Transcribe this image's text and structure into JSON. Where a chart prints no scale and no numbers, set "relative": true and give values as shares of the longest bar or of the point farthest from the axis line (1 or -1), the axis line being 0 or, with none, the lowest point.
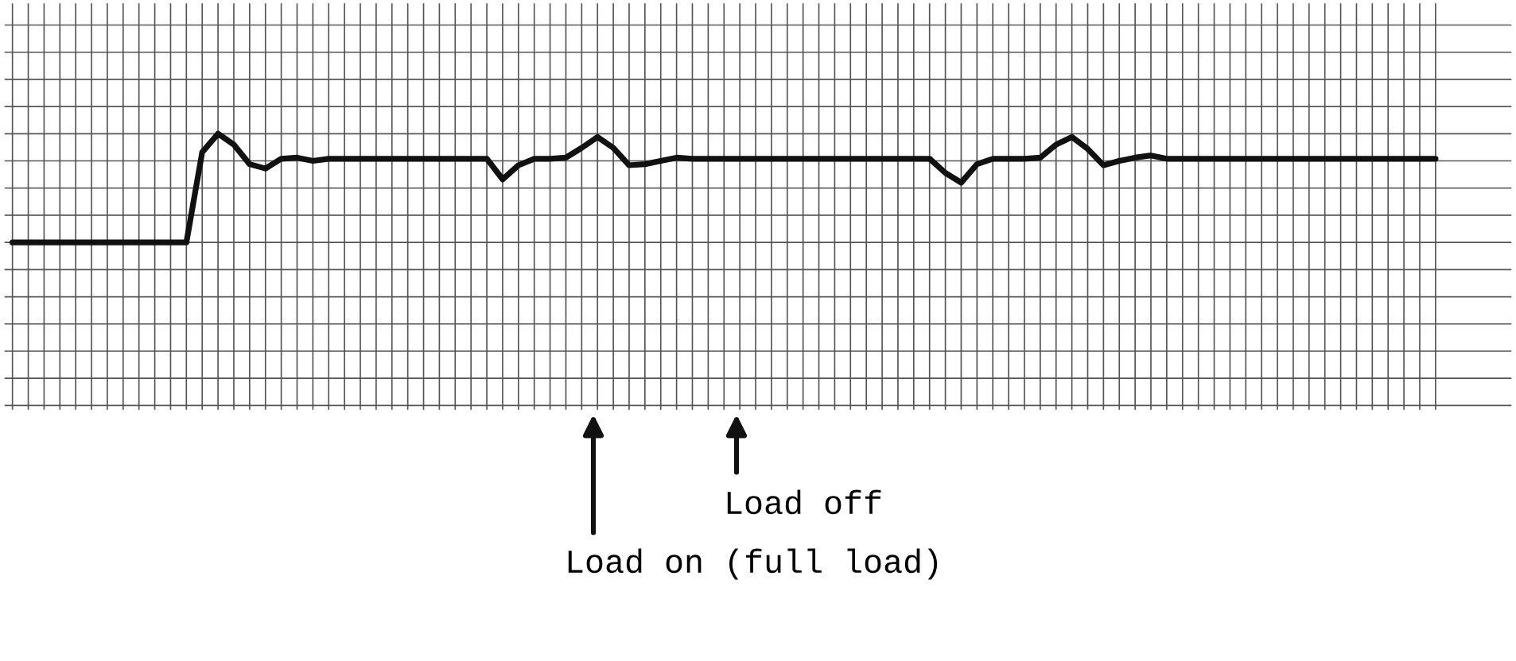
{
  "chart_data": {
    "type": "line",
    "relative": true,
    "grid": true,
    "color": "#111111",
    "categories": [
      null,
      null,
      null,
      null,
      null,
      null,
      null,
      null,
      null,
      null,
      null,
      null,
      null,
      null,
      null,
      null,
      null,
      null,
      null,
      null,
      null,
      null,
      null,
      null,
      null,
      null,
      null,
      null,
      null,
      null,
      null,
      null,
      null,
      null,
      null,
      null,
      null,
      null,
      null,
      null,
      null,
      null,
      null,
      null,
      null,
      null,
      null,
      null,
      null,
      null,
      null,
      null,
      null,
      null,
      null,
      null,
      null,
      null,
      null,
      null,
      null,
      null,
      null,
      null,
      null,
      null,
      null,
      null,
      null,
      null,
      null,
      null,
      null,
      null,
      null,
      null,
      null,
      null,
      null,
      null,
      null,
      null,
      null,
      null,
      null,
      null,
      null,
      null,
      null,
      null,
      null
    ],
    "values": [
      0,
      0,
      0,
      0,
      0,
      0,
      0,
      0,
      0,
      0,
      0,
      0,
      0.83,
      1,
      0.9,
      0.72,
      0.68,
      0.77,
      0.78,
      0.75,
      0.77,
      0.77,
      0.77,
      0.77,
      0.77,
      0.77,
      0.77,
      0.77,
      0.77,
      0.77,
      0.77,
      0.58,
      0.71,
      0.77,
      0.77,
      0.78,
      0.87,
      0.97,
      0.87,
      0.71,
      0.72,
      0.75,
      0.78,
      0.77,
      0.77,
      0.77,
      0.77,
      0.77,
      0.77,
      0.77,
      0.77,
      0.77,
      0.77,
      0.77,
      0.77,
      0.77,
      0.77,
      0.77,
      0.77,
      0.64,
      0.55,
      0.72,
      0.77,
      0.77,
      0.77,
      0.78,
      0.9,
      0.97,
      0.86,
      0.71,
      0.75,
      0.78,
      0.8,
      0.77,
      0.77,
      0.77,
      0.77,
      0.77,
      0.77,
      0.77,
      0.77,
      0.77,
      0.77,
      0.77,
      0.77,
      0.77,
      0.77,
      0.77,
      0.77,
      0.77,
      0.77
    ],
    "annotations": [
      "Load off",
      "Load on (full load)"
    ]
  }
}
